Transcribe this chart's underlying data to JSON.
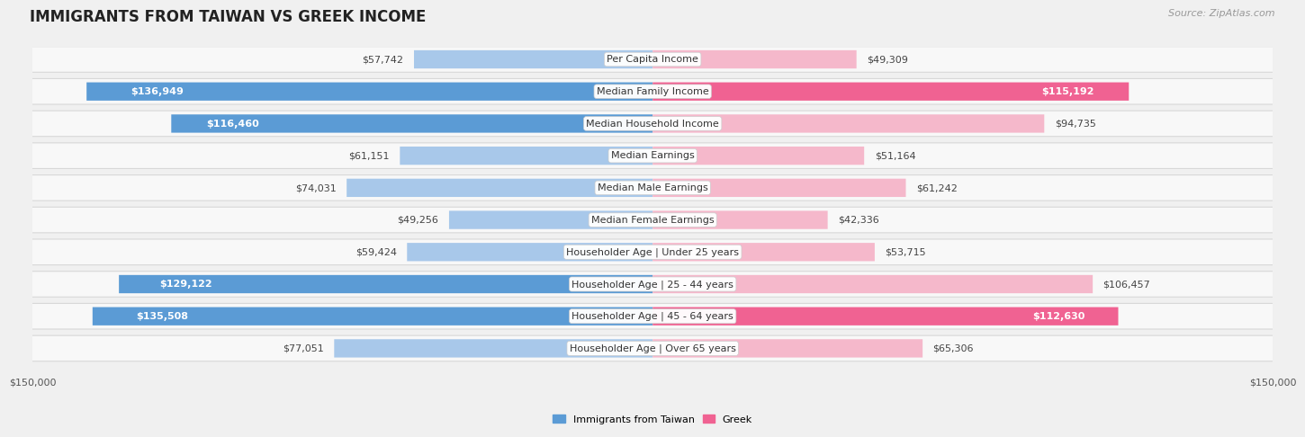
{
  "title": "IMMIGRANTS FROM TAIWAN VS GREEK INCOME",
  "source": "Source: ZipAtlas.com",
  "categories": [
    "Per Capita Income",
    "Median Family Income",
    "Median Household Income",
    "Median Earnings",
    "Median Male Earnings",
    "Median Female Earnings",
    "Householder Age | Under 25 years",
    "Householder Age | 25 - 44 years",
    "Householder Age | 45 - 64 years",
    "Householder Age | Over 65 years"
  ],
  "taiwan_values": [
    57742,
    136949,
    116460,
    61151,
    74031,
    49256,
    59424,
    129122,
    135508,
    77051
  ],
  "greek_values": [
    49309,
    115192,
    94735,
    51164,
    61242,
    42336,
    53715,
    106457,
    112630,
    65306
  ],
  "taiwan_color_light": "#a8c8ea",
  "taiwan_color_dark": "#5b9bd5",
  "greek_color_light": "#f5b8cb",
  "greek_color_dark": "#f06292",
  "max_val": 150000,
  "bg_color": "#f0f0f0",
  "row_bg": "#f8f8f8",
  "row_border": "#d8d8d8",
  "taiwan_label": "Immigrants from Taiwan",
  "greek_label": "Greek",
  "xlabel_left": "$150,000",
  "xlabel_right": "$150,000",
  "title_fontsize": 12,
  "source_fontsize": 8,
  "label_fontsize": 8,
  "value_fontsize": 8,
  "category_fontsize": 8,
  "dark_threshold": 0.72
}
